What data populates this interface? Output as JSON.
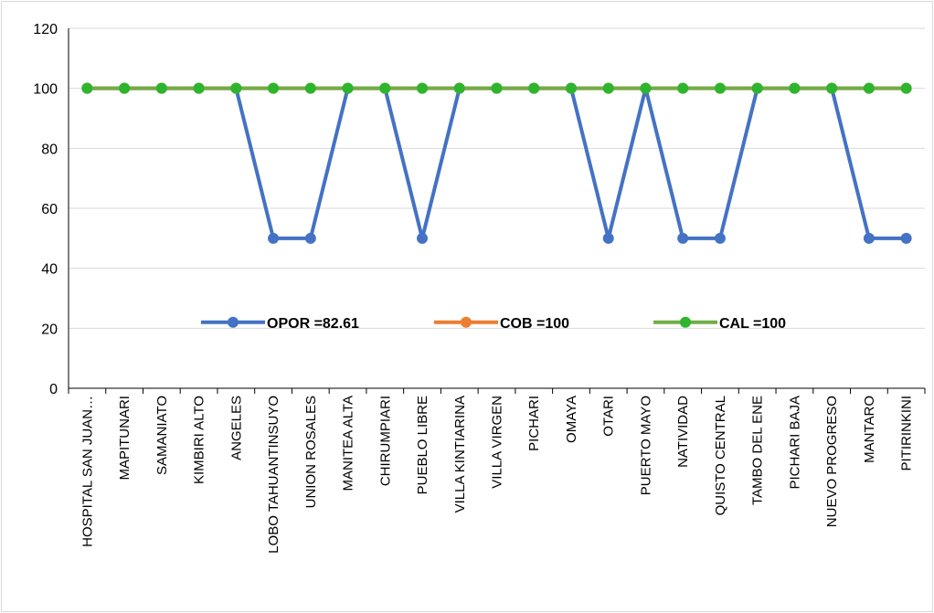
{
  "chart_data": {
    "type": "line",
    "categories": [
      "HOSPITAL SAN JUAN…",
      "MAPITUNARI",
      "SAMANIATO",
      "KIMBIRI ALTO",
      "ANGELES",
      "LOBO TAHUANTINSUYO",
      "UNION ROSALES",
      "MANITEA ALTA",
      "CHIRUMPIARI",
      "PUEBLO LIBRE",
      "VILLA KINTIARINA",
      "VILLA VIRGEN",
      "PICHARI",
      "OMAYA",
      "OTARI",
      "PUERTO MAYO",
      "NATIVIDAD",
      "QUISTO CENTRAL",
      "TAMBO DEL ENE",
      "PICHARI BAJA",
      "NUEVO PROGRESO",
      "MANTARO",
      "PITIRINKINI"
    ],
    "series": [
      {
        "name": "OPOR =82.61",
        "color": "#4472C4",
        "values": [
          100,
          100,
          100,
          100,
          100,
          50,
          50,
          100,
          100,
          50,
          100,
          100,
          100,
          100,
          50,
          100,
          50,
          50,
          100,
          100,
          100,
          50,
          50
        ]
      },
      {
        "name": "COB =100",
        "color": "#ED7D31",
        "values": [
          100,
          100,
          100,
          100,
          100,
          100,
          100,
          100,
          100,
          100,
          100,
          100,
          100,
          100,
          100,
          100,
          100,
          100,
          100,
          100,
          100,
          100,
          100
        ]
      },
      {
        "name": "CAL =100",
        "color": "#70AD47",
        "marker_color": "#2DB52D",
        "values": [
          100,
          100,
          100,
          100,
          100,
          100,
          100,
          100,
          100,
          100,
          100,
          100,
          100,
          100,
          100,
          100,
          100,
          100,
          100,
          100,
          100,
          100,
          100
        ]
      }
    ],
    "yticks": [
      0,
      20,
      40,
      60,
      80,
      100,
      120
    ],
    "ylim": [
      0,
      120
    ],
    "grid": true,
    "legend_position": "inside-lower-center",
    "title": "",
    "xlabel": "",
    "ylabel": ""
  }
}
